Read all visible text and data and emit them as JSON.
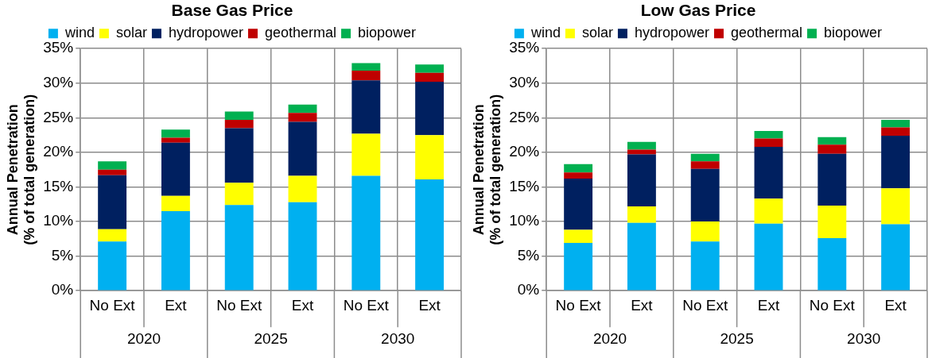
{
  "chart_data": [
    {
      "type": "bar",
      "title": "Base Gas Price",
      "ylabel": "Annual Penetration\n(% of total generation)",
      "stacked": true,
      "grid": true,
      "legend": "top",
      "categories": [
        "No Ext",
        "Ext",
        "No Ext",
        "Ext",
        "No Ext",
        "Ext"
      ],
      "annotations": [
        "2020",
        "2025",
        "2030"
      ],
      "ylim": [
        0,
        35
      ],
      "yticks": [
        {
          "value": 0,
          "label": "0%"
        },
        {
          "value": 5,
          "label": "5%"
        },
        {
          "value": 10,
          "label": "10%"
        },
        {
          "value": 15,
          "label": "15%"
        },
        {
          "value": 20,
          "label": "20%"
        },
        {
          "value": 25,
          "label": "25%"
        },
        {
          "value": 30,
          "label": "30%"
        },
        {
          "value": 35,
          "label": "35%"
        }
      ],
      "series": [
        {
          "name": "wind",
          "color": "#00b0f0",
          "values": [
            7.1,
            11.5,
            12.4,
            12.8,
            16.6,
            16.1
          ]
        },
        {
          "name": "solar",
          "color": "#ffff00",
          "values": [
            1.8,
            2.2,
            3.2,
            3.8,
            6.1,
            6.4
          ]
        },
        {
          "name": "hydropower",
          "color": "#002060",
          "values": [
            7.8,
            7.7,
            7.9,
            7.8,
            7.7,
            7.7
          ]
        },
        {
          "name": "geothermal",
          "color": "#c00000",
          "values": [
            0.8,
            0.7,
            1.2,
            1.3,
            1.4,
            1.3
          ]
        },
        {
          "name": "biopower",
          "color": "#00b050",
          "values": [
            1.2,
            1.2,
            1.2,
            1.2,
            1.1,
            1.2
          ]
        }
      ]
    },
    {
      "type": "bar",
      "title": "Low Gas Price",
      "ylabel": "Annual Penetration\n(% of total generation)",
      "stacked": true,
      "grid": true,
      "legend": "top",
      "categories": [
        "No Ext",
        "Ext",
        "No Ext",
        "Ext",
        "No Ext",
        "Ext"
      ],
      "annotations": [
        "2020",
        "2025",
        "2030"
      ],
      "ylim": [
        0,
        35
      ],
      "yticks": [
        {
          "value": 0,
          "label": "0%"
        },
        {
          "value": 5,
          "label": "5%"
        },
        {
          "value": 10,
          "label": "10%"
        },
        {
          "value": 15,
          "label": "15%"
        },
        {
          "value": 20,
          "label": "20%"
        },
        {
          "value": 25,
          "label": "25%"
        },
        {
          "value": 30,
          "label": "30%"
        },
        {
          "value": 35,
          "label": "35%"
        }
      ],
      "series": [
        {
          "name": "wind",
          "color": "#00b0f0",
          "values": [
            6.9,
            9.8,
            7.1,
            9.7,
            7.6,
            9.6
          ]
        },
        {
          "name": "solar",
          "color": "#ffff00",
          "values": [
            1.9,
            2.4,
            2.9,
            3.6,
            4.7,
            5.2
          ]
        },
        {
          "name": "hydropower",
          "color": "#002060",
          "values": [
            7.4,
            7.5,
            7.6,
            7.5,
            7.5,
            7.6
          ]
        },
        {
          "name": "geothermal",
          "color": "#c00000",
          "values": [
            0.9,
            0.7,
            1.1,
            1.2,
            1.3,
            1.2
          ]
        },
        {
          "name": "biopower",
          "color": "#00b050",
          "values": [
            1.2,
            1.1,
            1.1,
            1.1,
            1.1,
            1.1
          ]
        }
      ]
    }
  ]
}
